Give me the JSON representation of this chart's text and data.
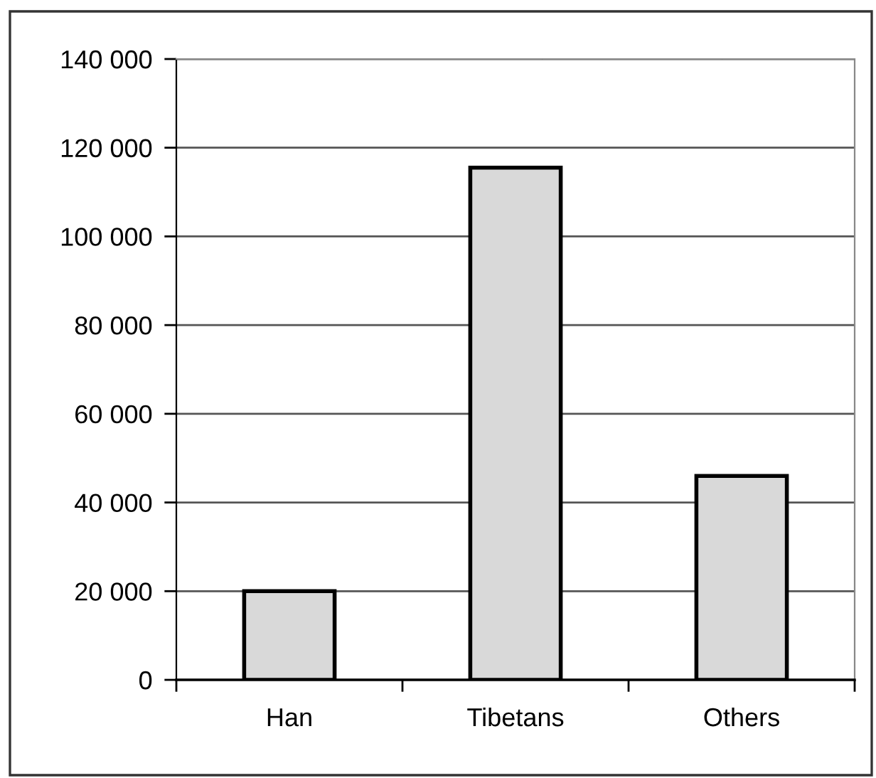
{
  "chart_data": {
    "type": "bar",
    "categories": [
      "Han",
      "Tibetans",
      "Others"
    ],
    "values": [
      20000,
      115500,
      46000
    ],
    "color": "#d9d9d9",
    "ylim": [
      0,
      140000
    ],
    "yticks": [
      0,
      {
        "value": 20000,
        "label": "20 000"
      },
      {
        "value": 40000,
        "label": "40 000"
      },
      {
        "value": 60000,
        "label": "60 000"
      },
      {
        "value": 80000,
        "label": "80 000"
      },
      {
        "value": 100000,
        "label": "100 000"
      },
      {
        "value": 120000,
        "label": "120 000"
      },
      {
        "value": 140000,
        "label": "140 000"
      }
    ],
    "grid": "y"
  }
}
